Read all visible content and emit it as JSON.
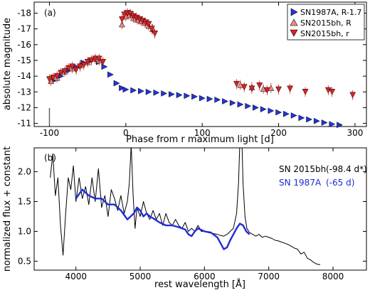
{
  "chart_data": [
    {
      "type": "scatter",
      "panel_label": "(a)",
      "xlabel": "Phase from r maximum light [d]",
      "ylabel": "absolute magnitude",
      "xlim": [
        -120,
        315
      ],
      "ylim": [
        -10.8,
        -18.7
      ],
      "x_ticks": [
        "-100",
        "0",
        "100",
        "200",
        "300"
      ],
      "y_ticks": [
        "-11",
        "-12",
        "-13",
        "-14",
        "-15",
        "-16",
        "-17",
        "-18"
      ],
      "legend_position": "top-right",
      "marker_line_x": -100,
      "series": [
        {
          "name": "SN1987A, R-1.7",
          "marker": "triangle-right",
          "color": "#2233dd",
          "points": [
            [
              -95,
              -13.7
            ],
            [
              -85,
              -14.0
            ],
            [
              -75,
              -14.35
            ],
            [
              -65,
              -14.6
            ],
            [
              -55,
              -14.85
            ],
            [
              -45,
              -15.0
            ],
            [
              -35,
              -14.9
            ],
            [
              -28,
              -14.6
            ],
            [
              -20,
              -14.1
            ],
            [
              -12,
              -13.55
            ],
            [
              -5,
              -13.25
            ],
            [
              0,
              -13.15
            ],
            [
              10,
              -13.1
            ],
            [
              20,
              -13.05
            ],
            [
              30,
              -13.0
            ],
            [
              40,
              -12.95
            ],
            [
              50,
              -12.9
            ],
            [
              60,
              -12.85
            ],
            [
              70,
              -12.8
            ],
            [
              80,
              -12.75
            ],
            [
              90,
              -12.7
            ],
            [
              100,
              -12.6
            ],
            [
              110,
              -12.55
            ],
            [
              120,
              -12.5
            ],
            [
              130,
              -12.4
            ],
            [
              140,
              -12.3
            ],
            [
              150,
              -12.2
            ],
            [
              160,
              -12.1
            ],
            [
              170,
              -12.0
            ],
            [
              180,
              -11.9
            ],
            [
              190,
              -11.8
            ],
            [
              200,
              -11.7
            ],
            [
              210,
              -11.6
            ],
            [
              220,
              -11.5
            ],
            [
              230,
              -11.35
            ],
            [
              240,
              -11.25
            ],
            [
              250,
              -11.15
            ],
            [
              260,
              -11.05
            ],
            [
              270,
              -10.95
            ],
            [
              280,
              -10.9
            ]
          ]
        },
        {
          "name": "SN2015bh, R",
          "marker": "triangle-up",
          "color": "#f08a8a",
          "points": [
            [
              -98,
              -13.7
            ],
            [
              -90,
              -13.9
            ],
            [
              -80,
              -14.3
            ],
            [
              -70,
              -14.5
            ],
            [
              -60,
              -14.7
            ],
            [
              -50,
              -14.9
            ],
            [
              -40,
              -15.1
            ],
            [
              -35,
              -15.0
            ],
            [
              -5,
              -17.3
            ],
            [
              0,
              -17.8
            ],
            [
              5,
              -17.9
            ],
            [
              10,
              -17.7
            ],
            [
              15,
              -17.6
            ],
            [
              20,
              -17.5
            ],
            [
              25,
              -17.4
            ],
            [
              30,
              -17.2
            ],
            [
              35,
              -17.0
            ],
            [
              150,
              -13.45
            ],
            [
              165,
              -13.3
            ],
            [
              180,
              -13.2
            ],
            [
              190,
              -13.25
            ]
          ]
        },
        {
          "name": "SN2015bh, r",
          "marker": "triangle-down",
          "color": "#dd2222",
          "points": [
            [
              -100,
              -13.8
            ],
            [
              -95,
              -13.9
            ],
            [
              -90,
              -14.0
            ],
            [
              -85,
              -14.2
            ],
            [
              -80,
              -14.3
            ],
            [
              -75,
              -14.5
            ],
            [
              -70,
              -14.6
            ],
            [
              -65,
              -14.4
            ],
            [
              -60,
              -14.6
            ],
            [
              -55,
              -14.7
            ],
            [
              -50,
              -14.9
            ],
            [
              -45,
              -15.0
            ],
            [
              -40,
              -15.1
            ],
            [
              -35,
              -15.1
            ],
            [
              -30,
              -14.9
            ],
            [
              -5,
              -17.6
            ],
            [
              -2,
              -17.9
            ],
            [
              2,
              -18.0
            ],
            [
              6,
              -17.95
            ],
            [
              10,
              -17.8
            ],
            [
              14,
              -17.7
            ],
            [
              18,
              -17.6
            ],
            [
              22,
              -17.5
            ],
            [
              26,
              -17.4
            ],
            [
              30,
              -17.3
            ],
            [
              34,
              -17.0
            ],
            [
              38,
              -16.7
            ],
            [
              145,
              -13.5
            ],
            [
              155,
              -13.3
            ],
            [
              165,
              -13.2
            ],
            [
              175,
              -13.4
            ],
            [
              185,
              -13.1
            ],
            [
              200,
              -13.15
            ],
            [
              215,
              -13.2
            ],
            [
              235,
              -13.0
            ],
            [
              265,
              -13.1
            ],
            [
              270,
              -13.0
            ],
            [
              297,
              -12.8
            ]
          ]
        }
      ]
    },
    {
      "type": "line",
      "panel_label": "(b)",
      "xlabel": "rest wavelength [Å]",
      "ylabel": "normalized flux + constant",
      "xlim": [
        3350,
        8520
      ],
      "ylim": [
        0.35,
        2.4
      ],
      "x_ticks": [
        "4000",
        "5000",
        "6000",
        "7000",
        "8000"
      ],
      "y_ticks": [
        "0.5",
        "1.0",
        "1.5",
        "2.0"
      ],
      "legend_position": "top-right",
      "series": [
        {
          "name": "SN 2015bh",
          "label_note": "(-98.4 d*)",
          "color": "#000000",
          "points": [
            [
              3600,
              1.9
            ],
            [
              3640,
              2.3
            ],
            [
              3680,
              1.6
            ],
            [
              3720,
              1.9
            ],
            [
              3760,
              1.1
            ],
            [
              3800,
              0.6
            ],
            [
              3840,
              1.3
            ],
            [
              3880,
              1.9
            ],
            [
              3920,
              1.7
            ],
            [
              3960,
              2.1
            ],
            [
              4000,
              1.5
            ],
            [
              4050,
              1.9
            ],
            [
              4100,
              1.55
            ],
            [
              4150,
              1.75
            ],
            [
              4200,
              1.45
            ],
            [
              4250,
              1.9
            ],
            [
              4300,
              1.5
            ],
            [
              4350,
              2.05
            ],
            [
              4400,
              1.4
            ],
            [
              4450,
              1.6
            ],
            [
              4500,
              1.25
            ],
            [
              4550,
              1.7
            ],
            [
              4600,
              1.55
            ],
            [
              4650,
              1.35
            ],
            [
              4700,
              1.6
            ],
            [
              4750,
              1.3
            ],
            [
              4800,
              1.5
            ],
            [
              4830,
              1.8
            ],
            [
              4860,
              2.45
            ],
            [
              4890,
              1.6
            ],
            [
              4920,
              1.05
            ],
            [
              4950,
              1.4
            ],
            [
              5000,
              1.25
            ],
            [
              5050,
              1.5
            ],
            [
              5100,
              1.3
            ],
            [
              5150,
              1.2
            ],
            [
              5200,
              1.35
            ],
            [
              5250,
              1.2
            ],
            [
              5300,
              1.3
            ],
            [
              5350,
              1.1
            ],
            [
              5400,
              1.3
            ],
            [
              5450,
              1.15
            ],
            [
              5500,
              1.1
            ],
            [
              5550,
              1.2
            ],
            [
              5600,
              1.1
            ],
            [
              5650,
              1.05
            ],
            [
              5700,
              1.15
            ],
            [
              5750,
              1.0
            ],
            [
              5800,
              1.05
            ],
            [
              5850,
              1.0
            ],
            [
              5900,
              1.1
            ],
            [
              5950,
              1.0
            ],
            [
              6000,
              1.0
            ],
            [
              6050,
              0.98
            ],
            [
              6100,
              0.97
            ],
            [
              6150,
              0.96
            ],
            [
              6200,
              0.95
            ],
            [
              6250,
              0.93
            ],
            [
              6300,
              0.92
            ],
            [
              6350,
              0.95
            ],
            [
              6400,
              1.0
            ],
            [
              6450,
              1.05
            ],
            [
              6500,
              1.3
            ],
            [
              6530,
              1.8
            ],
            [
              6550,
              2.5
            ],
            [
              6565,
              3.3
            ],
            [
              6580,
              2.6
            ],
            [
              6600,
              1.8
            ],
            [
              6630,
              1.25
            ],
            [
              6660,
              1.05
            ],
            [
              6700,
              0.98
            ],
            [
              6750,
              0.95
            ],
            [
              6800,
              0.92
            ],
            [
              6850,
              0.95
            ],
            [
              6900,
              0.9
            ],
            [
              6950,
              0.92
            ],
            [
              7000,
              0.9
            ],
            [
              7050,
              0.88
            ],
            [
              7100,
              0.85
            ],
            [
              7150,
              0.84
            ],
            [
              7200,
              0.82
            ],
            [
              7250,
              0.8
            ],
            [
              7300,
              0.78
            ],
            [
              7350,
              0.75
            ],
            [
              7400,
              0.72
            ],
            [
              7450,
              0.7
            ],
            [
              7500,
              0.62
            ],
            [
              7550,
              0.65
            ],
            [
              7600,
              0.55
            ],
            [
              7650,
              0.52
            ],
            [
              7700,
              0.48
            ],
            [
              7750,
              0.45
            ],
            [
              7800,
              0.44
            ]
          ]
        },
        {
          "name": "SN 1987A",
          "label_note": "(-65 d)",
          "color": "#1f2bd6",
          "points": [
            [
              4000,
              1.55
            ],
            [
              4100,
              1.7
            ],
            [
              4200,
              1.6
            ],
            [
              4300,
              1.55
            ],
            [
              4400,
              1.55
            ],
            [
              4500,
              1.45
            ],
            [
              4600,
              1.45
            ],
            [
              4700,
              1.35
            ],
            [
              4800,
              1.2
            ],
            [
              4900,
              1.3
            ],
            [
              4950,
              1.4
            ],
            [
              5000,
              1.35
            ],
            [
              5050,
              1.25
            ],
            [
              5100,
              1.3
            ],
            [
              5150,
              1.25
            ],
            [
              5200,
              1.22
            ],
            [
              5300,
              1.15
            ],
            [
              5400,
              1.1
            ],
            [
              5500,
              1.1
            ],
            [
              5600,
              1.07
            ],
            [
              5700,
              1.03
            ],
            [
              5750,
              0.95
            ],
            [
              5800,
              0.92
            ],
            [
              5850,
              1.0
            ],
            [
              5900,
              1.05
            ],
            [
              6000,
              1.0
            ],
            [
              6100,
              0.98
            ],
            [
              6200,
              0.9
            ],
            [
              6250,
              0.8
            ],
            [
              6300,
              0.7
            ],
            [
              6350,
              0.73
            ],
            [
              6400,
              0.85
            ],
            [
              6450,
              0.95
            ],
            [
              6500,
              1.05
            ],
            [
              6550,
              1.13
            ],
            [
              6600,
              1.1
            ],
            [
              6650,
              1.0
            ],
            [
              6700,
              0.95
            ]
          ]
        }
      ]
    }
  ]
}
